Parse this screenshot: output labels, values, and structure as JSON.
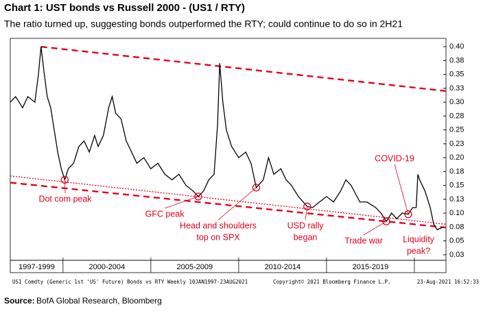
{
  "chart_data": {
    "type": "line",
    "title": "Chart 1: UST bonds vs Russell 2000 - (US1 / RTY)",
    "subtitle": "The ratio turned up, suggesting bonds outperformed the RTY; could continue to do so in 2H21",
    "x": [
      1997.0,
      1997.3,
      1997.7,
      1998.0,
      1998.4,
      1998.6,
      1998.75,
      1998.9,
      1999.1,
      1999.3,
      1999.5,
      1999.7,
      1999.9,
      2000.1,
      2000.3,
      2000.6,
      2000.9,
      2001.2,
      2001.5,
      2001.8,
      2002.0,
      2002.3,
      2002.6,
      2002.8,
      2003.0,
      2003.3,
      2003.6,
      2003.9,
      2004.2,
      2004.6,
      2005.0,
      2005.4,
      2005.8,
      2006.2,
      2006.6,
      2007.0,
      2007.4,
      2007.7,
      2008.0,
      2008.3,
      2008.6,
      2008.8,
      2008.92,
      2009.1,
      2009.3,
      2009.6,
      2010.0,
      2010.4,
      2010.7,
      2011.0,
      2011.4,
      2011.7,
      2012.0,
      2012.4,
      2012.7,
      2013.0,
      2013.4,
      2013.9,
      2014.2,
      2014.6,
      2015.0,
      2015.4,
      2015.8,
      2016.1,
      2016.4,
      2016.9,
      2017.3,
      2017.8,
      2018.1,
      2018.4,
      2018.7,
      2019.0,
      2019.3,
      2019.65,
      2019.9,
      2020.1,
      2020.2,
      2020.3,
      2020.6,
      2020.9,
      2021.1,
      2021.3,
      2021.64
    ],
    "series": [
      {
        "name": "US1 / RTY",
        "color": "#000000",
        "values": [
          0.3,
          0.31,
          0.29,
          0.31,
          0.3,
          0.35,
          0.4,
          0.36,
          0.31,
          0.29,
          0.25,
          0.21,
          0.18,
          0.16,
          0.18,
          0.19,
          0.22,
          0.23,
          0.21,
          0.24,
          0.22,
          0.24,
          0.29,
          0.31,
          0.28,
          0.27,
          0.23,
          0.21,
          0.19,
          0.2,
          0.18,
          0.19,
          0.17,
          0.16,
          0.17,
          0.15,
          0.14,
          0.13,
          0.14,
          0.16,
          0.17,
          0.26,
          0.37,
          0.3,
          0.25,
          0.22,
          0.2,
          0.21,
          0.19,
          0.146,
          0.16,
          0.2,
          0.17,
          0.18,
          0.16,
          0.15,
          0.13,
          0.112,
          0.11,
          0.12,
          0.13,
          0.12,
          0.14,
          0.16,
          0.15,
          0.12,
          0.12,
          0.11,
          0.1,
          0.085,
          0.1,
          0.09,
          0.1,
          0.098,
          0.11,
          0.11,
          0.17,
          0.16,
          0.14,
          0.11,
          0.08,
          0.07,
          0.075
        ]
      }
    ],
    "xlim": [
      1997.0,
      2021.8
    ],
    "xticks": [
      2000,
      2005,
      2010,
      2015,
      2020
    ],
    "x_labels": [
      "1997-1999",
      "2000-2004",
      "2005-2009",
      "2010-2014",
      "2015-2019"
    ],
    "ylim": [
      0.015,
      0.415
    ],
    "yticks": [
      {
        "value": 0.4,
        "label": "0.40"
      },
      {
        "value": 0.375,
        "label": "0.38"
      },
      {
        "value": 0.35,
        "label": "0.35"
      },
      {
        "value": 0.325,
        "label": "0.33"
      },
      {
        "value": 0.3,
        "label": "0.30"
      },
      {
        "value": 0.275,
        "label": "0.28"
      },
      {
        "value": 0.25,
        "label": "0.25"
      },
      {
        "value": 0.225,
        "label": "0.23"
      },
      {
        "value": 0.2,
        "label": "0.20"
      },
      {
        "value": 0.175,
        "label": "0.18"
      },
      {
        "value": 0.15,
        "label": "0.15"
      },
      {
        "value": 0.125,
        "label": "0.13"
      },
      {
        "value": 0.1,
        "label": "0.10"
      },
      {
        "value": 0.075,
        "label": "0.08"
      },
      {
        "value": 0.05,
        "label": "0.05"
      },
      {
        "value": 0.025,
        "label": "0.03"
      }
    ],
    "trend_color": "#e3001b",
    "trendlines": [
      {
        "style": "dashed",
        "x": [
          1998.75,
          2021.8
        ],
        "y": [
          0.4,
          0.32
        ]
      },
      {
        "style": "dashed",
        "x": [
          1997.0,
          2021.8
        ],
        "y": [
          0.155,
          0.074
        ]
      },
      {
        "style": "dotted",
        "x": [
          1997.0,
          2021.8
        ],
        "y": [
          0.167,
          0.08
        ]
      }
    ],
    "annotations": [
      {
        "text": [
          "Dot com peak"
        ],
        "x": 2000.1,
        "y": 0.16
      },
      {
        "text": [
          "GFC peak"
        ],
        "x": 2007.7,
        "y": 0.13
      },
      {
        "text": [
          "Head and shoulders",
          "top on SPX"
        ],
        "x": 2011.0,
        "y": 0.146
      },
      {
        "text": [
          "USD rally",
          "began"
        ],
        "x": 2013.9,
        "y": 0.112
      },
      {
        "text": [
          "Trade war"
        ],
        "x": 2018.4,
        "y": 0.085
      },
      {
        "text": [
          "COVID-19"
        ],
        "x": 2019.65,
        "y": 0.098
      },
      {
        "text": [
          "Liquidity",
          "peak?"
        ]
      }
    ],
    "footer": [
      "US1 Comdty (Generic 1st 'US' Future) Bonds vs RTY  Weekly 10JAN1997-23AUG2021",
      "Copyright© 2021 Bloomberg Finance L.P.",
      "23-Aug-2021 16:52:33"
    ],
    "source_label": "Source:",
    "source": "BofA Global Research, Bloomberg"
  }
}
